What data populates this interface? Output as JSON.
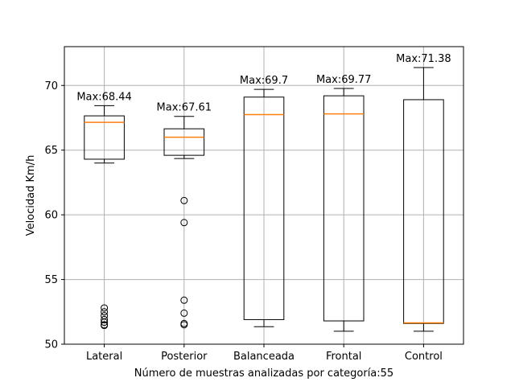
{
  "chart_data": {
    "type": "box",
    "xlabel": "Número de muestras analizadas por categoría:55",
    "ylabel": "Velocidad Km/h",
    "ylim": [
      50,
      73
    ],
    "yticks": [
      50,
      55,
      60,
      65,
      70
    ],
    "grid": true,
    "categories": [
      "Lateral",
      "Posterior",
      "Balanceada",
      "Frontal",
      "Control"
    ],
    "boxes": [
      {
        "whisker_low": 64.0,
        "q1": 64.3,
        "median": 67.15,
        "q3": 67.65,
        "whisker_high": 68.44,
        "outliers": [
          52.8,
          52.5,
          52.2,
          51.9,
          51.7,
          51.5,
          51.45
        ]
      },
      {
        "whisker_low": 64.35,
        "q1": 64.6,
        "median": 66.0,
        "q3": 66.65,
        "whisker_high": 67.61,
        "outliers": [
          61.1,
          59.4,
          53.4,
          52.4,
          51.6,
          51.5
        ]
      },
      {
        "whisker_low": 51.35,
        "q1": 51.9,
        "median": 67.75,
        "q3": 69.1,
        "whisker_high": 69.7,
        "outliers": []
      },
      {
        "whisker_low": 51.0,
        "q1": 51.8,
        "median": 67.8,
        "q3": 69.2,
        "whisker_high": 69.77,
        "outliers": []
      },
      {
        "whisker_low": 51.0,
        "q1": 51.6,
        "median": 51.65,
        "q3": 68.9,
        "whisker_high": 71.38,
        "outliers": []
      }
    ],
    "annotations": [
      "Max:68.44",
      "Max:67.61",
      "Max:69.7",
      "Max:69.77",
      "Max:71.38"
    ],
    "colors": {
      "box": "#000000",
      "median": "#ff7f0e",
      "grid": "#b0b0b0"
    }
  }
}
